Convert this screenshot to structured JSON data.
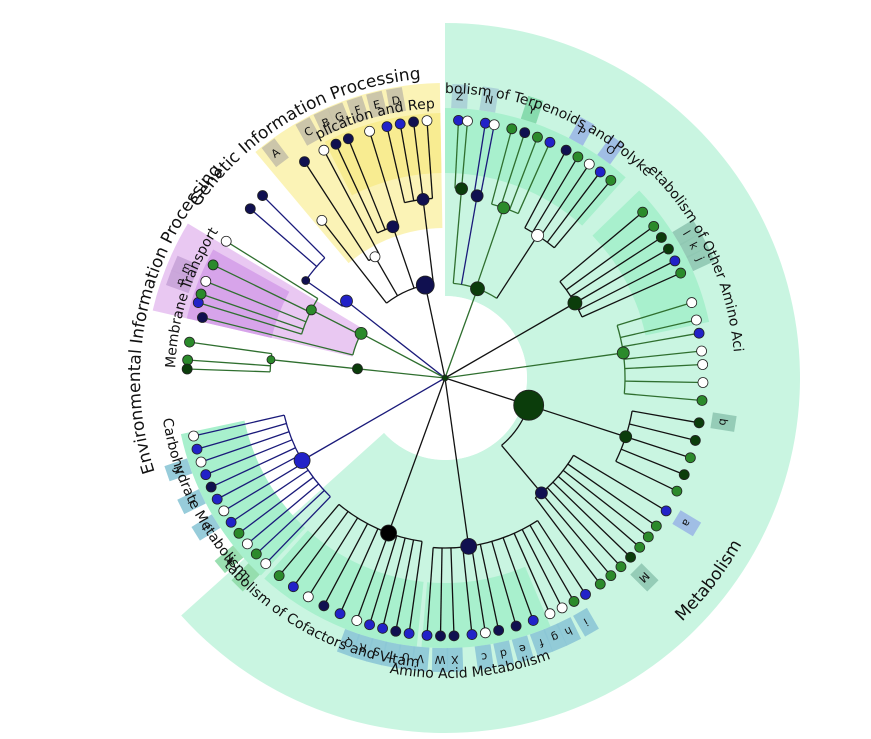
{
  "sectors": [
    {
      "name": "Genetic Information Processing",
      "color": "#fbf3b6",
      "start": -40,
      "end": -1,
      "ir": 150,
      "or": 295,
      "text": "Genetic Information Processing",
      "label_size": "big"
    },
    {
      "name": "Replication and Repair",
      "color": "#f8ec91",
      "start": -27,
      "end": -1,
      "ir": 205,
      "or": 265,
      "text": "Replication and Repair",
      "label_size": "small"
    },
    {
      "name": "Environmental Information Processing",
      "color": "#e9c8f2",
      "start": -77,
      "end": -59,
      "ir": 95,
      "or": 300,
      "text": "Environmental Information Processing",
      "label_size": "big"
    },
    {
      "name": "Membrane Transport",
      "color": "#d7a4ea",
      "start": -77,
      "end": -61,
      "ir": 178,
      "or": 265,
      "text": "Membrane Transport",
      "label_size": "small"
    },
    {
      "name": "Metabolism",
      "color": "#c9f5e1",
      "start": 0,
      "end": 228,
      "ir": 82,
      "or": 355,
      "text": "Metabolism",
      "label_size": "big"
    },
    {
      "name": "Metabolism of Terpenoids and Polyketides",
      "color": "#a8f0cd",
      "start": 0,
      "end": 42,
      "ir": 205,
      "or": 270,
      "text": "Metabolism of Terpenoids and Polyketides",
      "label_size": "small"
    },
    {
      "name": "Metabolism of Other Amino Acids",
      "color": "#a8f0cd",
      "start": 46,
      "end": 78,
      "ir": 205,
      "or": 270,
      "text": "Metabolism of Other Amino Acids",
      "label_size": "small"
    },
    {
      "name": "Amino Acid Metabolism",
      "color": "#a8f0cd",
      "start": 157,
      "end": 185,
      "ir": 205,
      "or": 270,
      "text": "Amino Acid Metabolism",
      "label_size": "small"
    },
    {
      "name": "Metabolism of Cofactors and Vitamins",
      "color": "#a8f0cd",
      "start": 186,
      "end": 222,
      "ir": 205,
      "or": 270,
      "text": "Metabolism of Cofactors and Vitamins",
      "label_size": "small"
    },
    {
      "name": "Carbohydrate Metabolism",
      "color": "#a8f0cd",
      "start": 223,
      "end": 258,
      "ir": 205,
      "or": 270,
      "text": "Carbohydrate Metabolism",
      "label_size": "small"
    }
  ],
  "leaf_labels": [
    {
      "text": "A",
      "color": "#c7c1a8"
    },
    {
      "text": "C",
      "color": "#c7c1a8"
    },
    {
      "text": "B",
      "color": "#c7c1a8"
    },
    {
      "text": "G",
      "color": "#c7c1a8"
    },
    {
      "text": "F",
      "color": "#c7c1a8"
    },
    {
      "text": "E",
      "color": "#c7c1a8"
    },
    {
      "text": "D",
      "color": "#c7c1a8"
    },
    {
      "text": "Z",
      "color": "#a9cfd6"
    },
    {
      "text": "N",
      "color": "#a9cfd6"
    },
    {
      "text": "Y",
      "color": "#7fd8a9"
    },
    {
      "text": "P",
      "color": "#9bb8e5"
    },
    {
      "text": "O",
      "color": "#9bb8e5"
    },
    {
      "text": "l",
      "color": "#8fc8b3"
    },
    {
      "text": "k",
      "color": "#8fc8b3"
    },
    {
      "text": "j",
      "color": "#8fc8b3"
    },
    {
      "text": "b",
      "color": "#8fc8b3"
    },
    {
      "text": "a",
      "color": "#9bb8e5"
    },
    {
      "text": "M",
      "color": "#8fc8b3"
    },
    {
      "text": "i",
      "color": "#8cc6d6"
    },
    {
      "text": "h",
      "color": "#8cc6d6"
    },
    {
      "text": "g",
      "color": "#8cc6d6"
    },
    {
      "text": "f",
      "color": "#8cc6d6"
    },
    {
      "text": "e",
      "color": "#8cc6d6"
    },
    {
      "text": "d",
      "color": "#8cc6d6"
    },
    {
      "text": "c",
      "color": "#8cc6d6"
    },
    {
      "text": "X",
      "color": "#8cc6d6"
    },
    {
      "text": "W",
      "color": "#8cc6d6"
    },
    {
      "text": "V",
      "color": "#8cc6d6"
    },
    {
      "text": "U",
      "color": "#8cc6d6"
    },
    {
      "text": "T",
      "color": "#8cc6d6"
    },
    {
      "text": "S",
      "color": "#8cc6d6"
    },
    {
      "text": "R",
      "color": "#8cc6d6"
    },
    {
      "text": "Q",
      "color": "#8cc6d6"
    },
    {
      "text": "L",
      "color": "#8fdca8"
    },
    {
      "text": "K",
      "color": "#8fdca8"
    },
    {
      "text": "J",
      "color": "#8cc6d6"
    },
    {
      "text": "I",
      "color": "#8cc6d6"
    },
    {
      "text": "H",
      "color": "#8cc6d6"
    },
    {
      "text": "n",
      "color": "#c8a3d8"
    },
    {
      "text": "m",
      "color": "#c8a3d8"
    }
  ],
  "node_colors": {
    "dark_navy": "#101050",
    "blue": "#2222c8",
    "white": "#ffffff",
    "green": "#2b8a2b",
    "dark_green": "#0b3d0b",
    "line_blue": "#1a1a7a",
    "line_green": "#2f6f2f",
    "line_black": "#111111"
  }
}
